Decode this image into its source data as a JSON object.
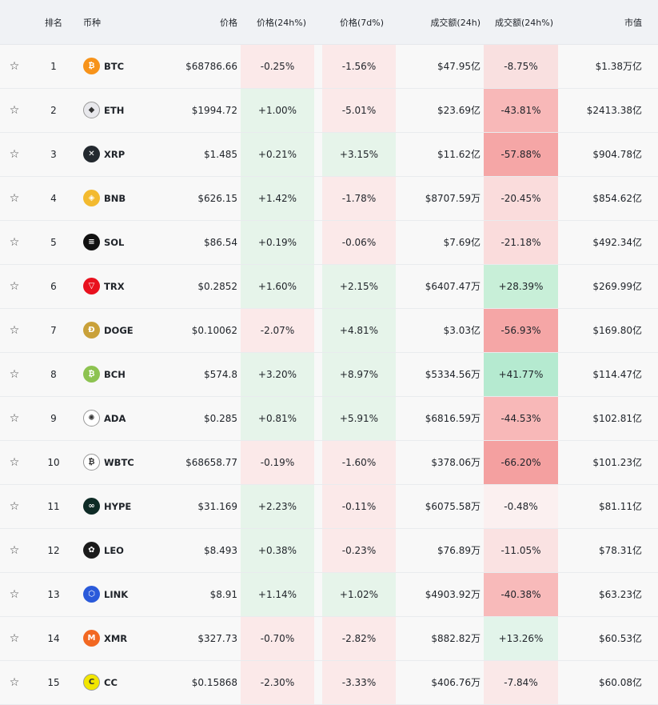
{
  "header": {
    "rank": "排名",
    "coin": "币种",
    "price": "价格",
    "chg24": "价格(24h%)",
    "chg7": "价格(7d%)",
    "vol": "成交额(24h)",
    "vchg": "成交额(24h%)",
    "mcap": "市值"
  },
  "colors": {
    "pos_light": "#e6f4ea",
    "neg_light": "#fbe9e9"
  },
  "rows": [
    {
      "rank": "1",
      "symbol": "BTC",
      "price": "$68786.66",
      "chg24": "-0.25%",
      "chg7": "-1.56%",
      "vol": "$47.95亿",
      "vchg": "-8.75%",
      "mcap": "$1.38万亿",
      "logo_color": "#f7931a",
      "logo_char": "₿",
      "chg24_bg": "#fbe9e9",
      "chg7_bg": "#fbe9e9",
      "vchg_bg": "#f9e0e0"
    },
    {
      "rank": "2",
      "symbol": "ETH",
      "price": "$1994.72",
      "chg24": "+1.00%",
      "chg7": "-5.01%",
      "vol": "$23.69亿",
      "vchg": "-43.81%",
      "mcap": "$2413.38亿",
      "logo_color": "#e8e8ec",
      "logo_char": "◆",
      "chg24_bg": "#e6f4ea",
      "chg7_bg": "#fbe9e9",
      "vchg_bg": "#f8b8b8"
    },
    {
      "rank": "3",
      "symbol": "XRP",
      "price": "$1.485",
      "chg24": "+0.21%",
      "chg7": "+3.15%",
      "vol": "$11.62亿",
      "vchg": "-57.88%",
      "mcap": "$904.78亿",
      "logo_color": "#23292f",
      "logo_char": "✕",
      "chg24_bg": "#e6f4ea",
      "chg7_bg": "#e6f4ea",
      "vchg_bg": "#f5a6a6"
    },
    {
      "rank": "4",
      "symbol": "BNB",
      "price": "$626.15",
      "chg24": "+1.42%",
      "chg7": "-1.78%",
      "vol": "$8707.59万",
      "vchg": "-20.45%",
      "mcap": "$854.62亿",
      "logo_color": "#f3ba2f",
      "logo_char": "◈",
      "chg24_bg": "#e6f4ea",
      "chg7_bg": "#fbe9e9",
      "vchg_bg": "#fadcdc"
    },
    {
      "rank": "5",
      "symbol": "SOL",
      "price": "$86.54",
      "chg24": "+0.19%",
      "chg7": "-0.06%",
      "vol": "$7.69亿",
      "vchg": "-21.18%",
      "mcap": "$492.34亿",
      "logo_color": "#111111",
      "logo_char": "≡",
      "chg24_bg": "#e6f4ea",
      "chg7_bg": "#fbe9e9",
      "vchg_bg": "#fadcdc"
    },
    {
      "rank": "6",
      "symbol": "TRX",
      "price": "$0.2852",
      "chg24": "+1.60%",
      "chg7": "+2.15%",
      "vol": "$6407.47万",
      "vchg": "+28.39%",
      "mcap": "$269.99亿",
      "logo_color": "#e8111e",
      "logo_char": "▽",
      "chg24_bg": "#e6f4ea",
      "chg7_bg": "#e6f4ea",
      "vchg_bg": "#c8efd8"
    },
    {
      "rank": "7",
      "symbol": "DOGE",
      "price": "$0.10062",
      "chg24": "-2.07%",
      "chg7": "+4.81%",
      "vol": "$3.03亿",
      "vchg": "-56.93%",
      "mcap": "$169.80亿",
      "logo_color": "#c9a13a",
      "logo_char": "Ð",
      "chg24_bg": "#fbe9e9",
      "chg7_bg": "#e6f4ea",
      "vchg_bg": "#f5a6a6"
    },
    {
      "rank": "8",
      "symbol": "BCH",
      "price": "$574.8",
      "chg24": "+3.20%",
      "chg7": "+8.97%",
      "vol": "$5334.56万",
      "vchg": "+41.77%",
      "mcap": "$114.47亿",
      "logo_color": "#8dc351",
      "logo_char": "₿",
      "chg24_bg": "#e6f4ea",
      "chg7_bg": "#e6f4ea",
      "vchg_bg": "#b5ead0"
    },
    {
      "rank": "9",
      "symbol": "ADA",
      "price": "$0.285",
      "chg24": "+0.81%",
      "chg7": "+5.91%",
      "vol": "$6816.59万",
      "vchg": "-44.53%",
      "mcap": "$102.81亿",
      "logo_color": "#ffffff",
      "logo_char": "✺",
      "chg24_bg": "#e6f4ea",
      "chg7_bg": "#e6f4ea",
      "vchg_bg": "#f8b8b8"
    },
    {
      "rank": "10",
      "symbol": "WBTC",
      "price": "$68658.77",
      "chg24": "-0.19%",
      "chg7": "-1.60%",
      "vol": "$378.06万",
      "vchg": "-66.20%",
      "mcap": "$101.23亿",
      "logo_color": "#ffffff",
      "logo_char": "₿",
      "chg24_bg": "#fbe9e9",
      "chg7_bg": "#fbe9e9",
      "vchg_bg": "#f4a0a0"
    },
    {
      "rank": "11",
      "symbol": "HYPE",
      "price": "$31.169",
      "chg24": "+2.23%",
      "chg7": "-0.11%",
      "vol": "$6075.58万",
      "vchg": "-0.48%",
      "mcap": "$81.11亿",
      "logo_color": "#0e2b26",
      "logo_char": "∞",
      "chg24_bg": "#e6f4ea",
      "chg7_bg": "#fbe9e9",
      "vchg_bg": "#fbf0f0"
    },
    {
      "rank": "12",
      "symbol": "LEO",
      "price": "$8.493",
      "chg24": "+0.38%",
      "chg7": "-0.23%",
      "vol": "$76.89万",
      "vchg": "-11.05%",
      "mcap": "$78.31亿",
      "logo_color": "#1b1b1b",
      "logo_char": "✿",
      "chg24_bg": "#e6f4ea",
      "chg7_bg": "#fbe9e9",
      "vchg_bg": "#fae2e2"
    },
    {
      "rank": "13",
      "symbol": "LINK",
      "price": "$8.91",
      "chg24": "+1.14%",
      "chg7": "+1.02%",
      "vol": "$4903.92万",
      "vchg": "-40.38%",
      "mcap": "$63.23亿",
      "logo_color": "#2a5ada",
      "logo_char": "⬡",
      "chg24_bg": "#e6f4ea",
      "chg7_bg": "#e6f4ea",
      "vchg_bg": "#f8baba"
    },
    {
      "rank": "14",
      "symbol": "XMR",
      "price": "$327.73",
      "chg24": "-0.70%",
      "chg7": "-2.82%",
      "vol": "$882.82万",
      "vchg": "+13.26%",
      "mcap": "$60.53亿",
      "logo_color": "#f26822",
      "logo_char": "M",
      "chg24_bg": "#fbe9e9",
      "chg7_bg": "#fbe9e9",
      "vchg_bg": "#e2f4ea"
    },
    {
      "rank": "15",
      "symbol": "CC",
      "price": "$0.15868",
      "chg24": "-2.30%",
      "chg7": "-3.33%",
      "vol": "$406.76万",
      "vchg": "-7.84%",
      "mcap": "$60.08亿",
      "logo_color": "#f2e600",
      "logo_char": "C",
      "chg24_bg": "#fbe9e9",
      "chg7_bg": "#fbe9e9",
      "vchg_bg": "#fae8e8"
    }
  ]
}
